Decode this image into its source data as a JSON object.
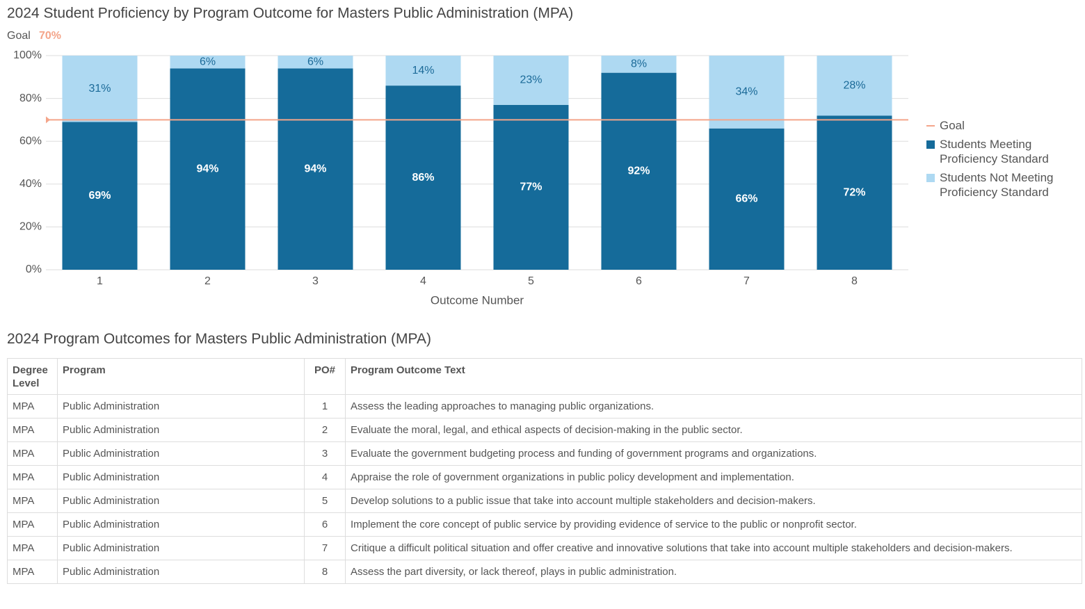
{
  "chart_data": {
    "type": "stacked_bar",
    "title": "2024 Student Proficiency by Program Outcome for Masters Public Administration (MPA)",
    "goal": {
      "label": "Goal",
      "value": 70,
      "value_label": "70%",
      "color": "#f4a58a"
    },
    "categories": [
      "1",
      "2",
      "3",
      "4",
      "5",
      "6",
      "7",
      "8"
    ],
    "series": [
      {
        "name": "Students Meeting Proficiency Standard",
        "color": "#156b9a",
        "label_color": "#ffffff",
        "values": [
          69,
          94,
          94,
          86,
          77,
          92,
          66,
          72
        ],
        "value_labels": [
          "69%",
          "94%",
          "94%",
          "86%",
          "77%",
          "92%",
          "66%",
          "72%"
        ]
      },
      {
        "name": "Students Not Meeting Proficiency Standard",
        "color": "#aed9f2",
        "label_color": "#1b6a98",
        "values": [
          31,
          6,
          6,
          14,
          23,
          8,
          34,
          28
        ],
        "value_labels": [
          "31%",
          "6%",
          "6%",
          "14%",
          "23%",
          "8%",
          "34%",
          "28%"
        ]
      }
    ],
    "ylim": [
      0,
      100
    ],
    "yticks": [
      {
        "value": 0,
        "label": "0%"
      },
      {
        "value": 20,
        "label": "20%"
      },
      {
        "value": 40,
        "label": "40%"
      },
      {
        "value": 60,
        "label": "60%"
      },
      {
        "value": 80,
        "label": "80%"
      },
      {
        "value": 100,
        "label": "100%"
      }
    ],
    "xlabel": "Outcome Number",
    "grid": true
  },
  "table": {
    "title": "2024 Program Outcomes for Masters Public Administration (MPA)",
    "columns": [
      "Degree Level",
      "Program",
      "PO#",
      "Program Outcome Text"
    ],
    "rows": [
      [
        "MPA",
        "Public Administration",
        1,
        "Assess the leading approaches to managing public organizations."
      ],
      [
        "MPA",
        "Public Administration",
        2,
        "Evaluate the moral, legal, and ethical aspects of decision-making in the public sector."
      ],
      [
        "MPA",
        "Public Administration",
        3,
        "Evaluate the government budgeting process and funding of government programs and organizations."
      ],
      [
        "MPA",
        "Public Administration",
        4,
        "Appraise the role of government organizations in public policy development and implementation."
      ],
      [
        "MPA",
        "Public Administration",
        5,
        "Develop solutions to a public issue that take into account multiple stakeholders and decision-makers."
      ],
      [
        "MPA",
        "Public Administration",
        6,
        "Implement the core concept of public service by providing evidence of service to the public or nonprofit sector."
      ],
      [
        "MPA",
        "Public Administration",
        7,
        "Critique a difficult political situation and offer creative and innovative solutions that take into account multiple stakeholders and decision-makers."
      ],
      [
        "MPA",
        "Public Administration",
        8,
        "Assess the part diversity, or lack thereof, plays in public administration."
      ]
    ]
  }
}
